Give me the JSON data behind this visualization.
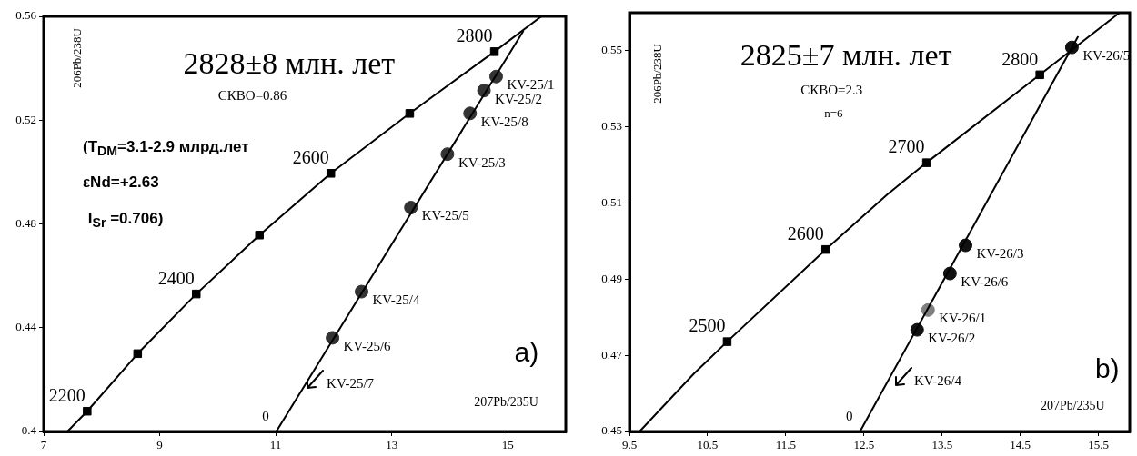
{
  "chart_data": [
    {
      "type": "scatter",
      "title": "2828±8 млн. лет",
      "xlabel": "207Pb/235U",
      "ylabel": "206Pb/238U",
      "xlim": [
        7,
        16
      ],
      "ylim": [
        0.4,
        0.56
      ],
      "xticks": [
        7,
        9,
        11,
        13,
        15
      ],
      "yticks": [
        0.4,
        0.44,
        0.48,
        0.52,
        0.56
      ],
      "grid": false,
      "legend": false,
      "annotations": [
        "СКВО=0.86",
        "(T$_{DM}$=3.1-2.9 млрд.лет",
        "εNd=+2.63",
        "I$_{Sr}$ =0.706)",
        "a)",
        "KV-25/7",
        {
          "text": "0",
          "x": 11.01,
          "y": 0.4
        },
        {
          "text": "2200",
          "x": 7.75,
          "y": 0.4078
        },
        {
          "text": "2400",
          "x": 9.63,
          "y": 0.453
        },
        {
          "text": "2600",
          "x": 11.95,
          "y": 0.4995
        },
        {
          "text": "2800",
          "x": 14.77,
          "y": 0.5464
        }
      ],
      "series": [
        {
          "type": "line",
          "marker": "none",
          "color": "#000000",
          "x": [
            7.41,
            7.75,
            8.62,
            9.63,
            10.72,
            11.95,
            13.31,
            14.77,
            15.58
          ],
          "values": [
            0.4,
            0.4078,
            0.43,
            0.453,
            0.4757,
            0.4995,
            0.5226,
            0.5464,
            0.56
          ]
        },
        {
          "type": "line",
          "marker": "none",
          "color": "#000000",
          "x": [
            11.01,
            15.27
          ],
          "values": [
            0.4,
            0.5544
          ]
        },
        {
          "type": "scatter",
          "marker": "square",
          "color": "#000000",
          "x": [
            7.75,
            8.62,
            9.63,
            10.72,
            11.95,
            13.31,
            14.77
          ],
          "values": [
            0.4078,
            0.43,
            0.453,
            0.4757,
            0.4995,
            0.5226,
            0.5464
          ]
        },
        {
          "type": "scatter",
          "marker": "circle",
          "color": "#333333",
          "x": [
            14.8,
            14.59,
            14.35,
            13.96,
            13.33,
            12.48,
            11.98
          ],
          "values": [
            0.5368,
            0.5314,
            0.5226,
            0.5069,
            0.4863,
            0.4539,
            0.4361
          ],
          "value_labels": [
            "KV-25/1",
            "KV-25/2",
            "KV-25/8",
            "KV-25/3",
            "KV-25/5",
            "KV-25/4",
            "KV-25/6"
          ]
        }
      ]
    },
    {
      "type": "scatter",
      "title": "2825±7 млн. лет",
      "xlabel": "207Pb/235U",
      "ylabel": "206Pb/238U",
      "xlim": [
        9.5,
        15.9
      ],
      "ylim": [
        0.45,
        0.56
      ],
      "xticks": [
        9.5,
        10.5,
        11.5,
        12.5,
        13.5,
        14.5,
        15.5
      ],
      "yticks": [
        0.45,
        0.47,
        0.49,
        0.51,
        0.53,
        0.55
      ],
      "grid": false,
      "legend": false,
      "annotations": [
        "СКВО=2.3",
        "n=6",
        "b)",
        "KV-26/4",
        {
          "text": "0",
          "x": 12.45,
          "y": 0.45
        },
        {
          "text": "2500",
          "x": 10.75,
          "y": 0.4736
        },
        {
          "text": "2600",
          "x": 12.01,
          "y": 0.4978
        },
        {
          "text": "2700",
          "x": 13.3,
          "y": 0.5206
        },
        {
          "text": "2800",
          "x": 14.75,
          "y": 0.5437
        }
      ],
      "series": [
        {
          "type": "line",
          "marker": "none",
          "color": "#000000",
          "x": [
            9.63,
            10.32,
            10.75,
            12.01,
            12.8,
            13.3,
            14.75,
            15.77
          ],
          "values": [
            0.45,
            0.4651,
            0.4736,
            0.4978,
            0.5123,
            0.5206,
            0.5437,
            0.56
          ]
        },
        {
          "type": "line",
          "marker": "none",
          "color": "#000000",
          "x": [
            12.45,
            15.24
          ],
          "values": [
            0.45,
            0.5538
          ]
        },
        {
          "type": "scatter",
          "marker": "square",
          "color": "#000000",
          "x": [
            10.75,
            12.01,
            13.3,
            14.75
          ],
          "values": [
            0.4736,
            0.4978,
            0.5206,
            0.5437
          ]
        },
        {
          "type": "scatter",
          "marker": "circle",
          "color": "#111111",
          "colors": [
            "#111111",
            "#111111",
            "#111111",
            "#808080",
            "#111111"
          ],
          "x": [
            15.16,
            13.8,
            13.6,
            13.32,
            13.18
          ],
          "values": [
            0.5509,
            0.4989,
            0.4915,
            0.4819,
            0.4767
          ],
          "value_labels": [
            "KV-26/5",
            "KV-26/3",
            "KV-26/6",
            "KV-26/1",
            "KV-26/2"
          ]
        }
      ]
    }
  ]
}
